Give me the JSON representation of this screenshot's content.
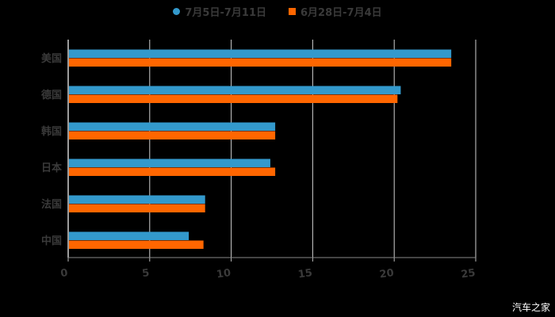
{
  "chart_data": {
    "type": "bar",
    "orientation": "horizontal",
    "title": "",
    "categories": [
      "美国",
      "德国",
      "韩国",
      "日本",
      "法国",
      "中国"
    ],
    "series": [
      {
        "name": "7月5日-7月11日",
        "color": "#3399CC",
        "values": [
          23.5,
          20.4,
          12.7,
          12.4,
          8.4,
          7.4
        ]
      },
      {
        "name": "6月28日-7月4日",
        "color": "#FF6600",
        "values": [
          23.5,
          20.2,
          12.7,
          12.7,
          8.4,
          8.3
        ]
      }
    ],
    "xlabel": "",
    "ylabel": "",
    "xlim": [
      0,
      25
    ],
    "xticks": [
      "0",
      "5",
      "10",
      "15",
      "20",
      "25"
    ],
    "grid": true,
    "legend_position": "top"
  },
  "legend": {
    "series1": "7月5日-7月11日",
    "series2": "6月28日-7月4日"
  },
  "watermark": "汽车之家"
}
